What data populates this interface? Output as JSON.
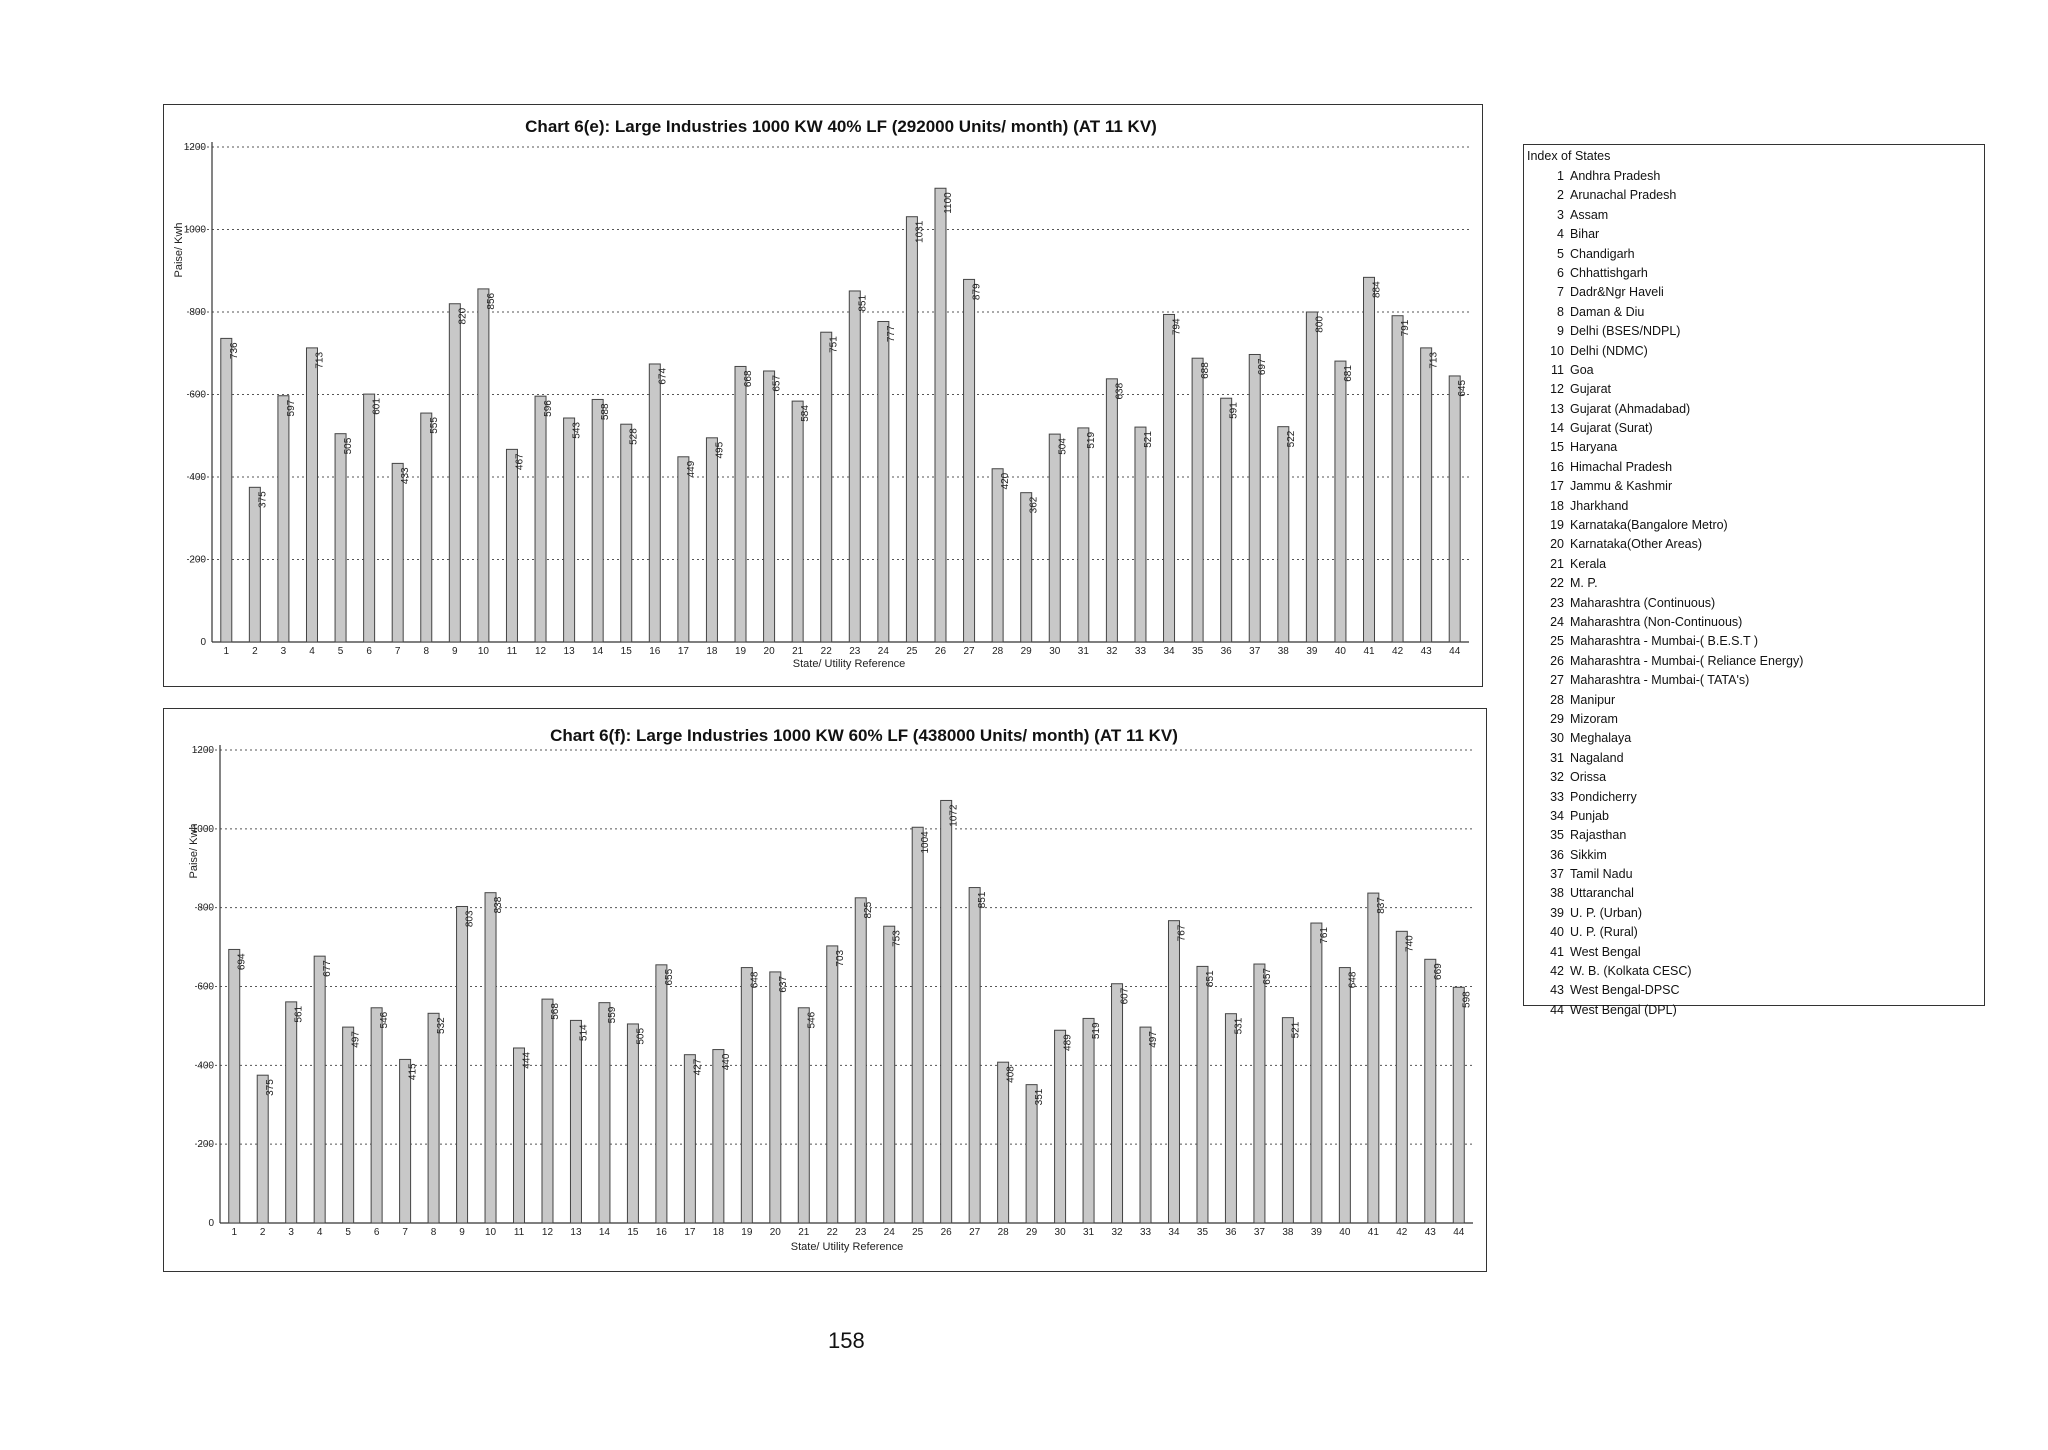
{
  "chart_data": [
    {
      "type": "bar",
      "title": "Chart 6(e): Large Industries 1000 KW  40% LF (292000 Units/ month) (AT 11 KV)",
      "xlabel": "State/ Utility  Reference",
      "ylabel": "Paise/ Kwh",
      "ylim": [
        0,
        1200
      ],
      "yticks": [
        0,
        200,
        400,
        600,
        800,
        1000,
        1200
      ],
      "grid": true,
      "categories": [
        "1",
        "2",
        "3",
        "4",
        "5",
        "6",
        "7",
        "8",
        "9",
        "10",
        "11",
        "12",
        "13",
        "14",
        "15",
        "16",
        "17",
        "18",
        "19",
        "20",
        "21",
        "22",
        "23",
        "24",
        "25",
        "26",
        "27",
        "28",
        "29",
        "30",
        "31",
        "32",
        "33",
        "34",
        "35",
        "36",
        "37",
        "38",
        "39",
        "40",
        "41",
        "42",
        "43",
        "44"
      ],
      "values": [
        736,
        375,
        597,
        713,
        505,
        601,
        433,
        555,
        820,
        856,
        467,
        596,
        543,
        588,
        528,
        674,
        449,
        495,
        668,
        657,
        584,
        751,
        851,
        777,
        1031,
        1100,
        879,
        420,
        362,
        504,
        519,
        638,
        521,
        794,
        688,
        591,
        697,
        522,
        800,
        681,
        884,
        791,
        713,
        645
      ]
    },
    {
      "type": "bar",
      "title": "Chart 6(f): Large Industries 1000 KW  60% LF (438000 Units/ month) (AT 11 KV)",
      "xlabel": "State/ Utility  Reference",
      "ylabel": "Paise/ Kwh",
      "ylim": [
        0,
        1200
      ],
      "yticks": [
        0,
        200,
        400,
        600,
        800,
        1000,
        1200
      ],
      "grid": true,
      "categories": [
        "1",
        "2",
        "3",
        "4",
        "5",
        "6",
        "7",
        "8",
        "9",
        "10",
        "11",
        "12",
        "13",
        "14",
        "15",
        "16",
        "17",
        "18",
        "19",
        "20",
        "21",
        "22",
        "23",
        "24",
        "25",
        "26",
        "27",
        "28",
        "29",
        "30",
        "31",
        "32",
        "33",
        "34",
        "35",
        "36",
        "37",
        "38",
        "39",
        "40",
        "41",
        "42",
        "43",
        "44"
      ],
      "values": [
        694,
        375,
        561,
        677,
        497,
        546,
        415,
        532,
        803,
        838,
        444,
        568,
        514,
        559,
        505,
        655,
        427,
        440,
        648,
        637,
        546,
        703,
        825,
        753,
        1004,
        1072,
        851,
        408,
        351,
        489,
        519,
        607,
        497,
        767,
        651,
        531,
        657,
        521,
        761,
        648,
        837,
        740,
        669,
        598
      ]
    }
  ],
  "legend": {
    "title": "Index of States",
    "items": [
      {
        "num": "1",
        "name": "Andhra Pradesh"
      },
      {
        "num": "2",
        "name": "Arunachal Pradesh"
      },
      {
        "num": "3",
        "name": "Assam"
      },
      {
        "num": "4",
        "name": "Bihar"
      },
      {
        "num": "5",
        "name": "Chandigarh"
      },
      {
        "num": "6",
        "name": "Chhattishgarh"
      },
      {
        "num": "7",
        "name": "Dadr&Ngr Haveli"
      },
      {
        "num": "8",
        "name": "Daman & Diu"
      },
      {
        "num": "9",
        "name": "Delhi (BSES/NDPL)"
      },
      {
        "num": "10",
        "name": "Delhi (NDMC)"
      },
      {
        "num": "11",
        "name": "Goa"
      },
      {
        "num": "12",
        "name": "Gujarat"
      },
      {
        "num": "13",
        "name": "Gujarat (Ahmadabad)"
      },
      {
        "num": "14",
        "name": "Gujarat (Surat)"
      },
      {
        "num": "15",
        "name": "Haryana"
      },
      {
        "num": "16",
        "name": "Himachal Pradesh"
      },
      {
        "num": "17",
        "name": "Jammu & Kashmir"
      },
      {
        "num": "18",
        "name": "Jharkhand"
      },
      {
        "num": "19",
        "name": "Karnataka(Bangalore Metro)"
      },
      {
        "num": "20",
        "name": "Karnataka(Other Areas)"
      },
      {
        "num": "21",
        "name": "Kerala"
      },
      {
        "num": "22",
        "name": "M. P."
      },
      {
        "num": "23",
        "name": "Maharashtra (Continuous)"
      },
      {
        "num": "24",
        "name": "Maharashtra (Non-Continuous)"
      },
      {
        "num": "25",
        "name": "Maharashtra - Mumbai-( B.E.S.T )"
      },
      {
        "num": "26",
        "name": "Maharashtra - Mumbai-( Reliance Energy)"
      },
      {
        "num": "27",
        "name": "Maharashtra - Mumbai-( TATA's)"
      },
      {
        "num": "28",
        "name": "Manipur"
      },
      {
        "num": "29",
        "name": "Mizoram"
      },
      {
        "num": "30",
        "name": "Meghalaya"
      },
      {
        "num": "31",
        "name": "Nagaland"
      },
      {
        "num": "32",
        "name": "Orissa"
      },
      {
        "num": "33",
        "name": "Pondicherry"
      },
      {
        "num": "34",
        "name": "Punjab"
      },
      {
        "num": "35",
        "name": "Rajasthan"
      },
      {
        "num": "36",
        "name": "Sikkim"
      },
      {
        "num": "37",
        "name": "Tamil Nadu"
      },
      {
        "num": "38",
        "name": "Uttaranchal"
      },
      {
        "num": "39",
        "name": "U. P. (Urban)"
      },
      {
        "num": "40",
        "name": "U. P. (Rural)"
      },
      {
        "num": "41",
        "name": "West Bengal"
      },
      {
        "num": "42",
        "name": "W. B. (Kolkata CESC)"
      },
      {
        "num": "43",
        "name": "West Bengal-DPSC"
      },
      {
        "num": "44",
        "name": "West Bengal (DPL)"
      }
    ]
  },
  "page_number": "158"
}
